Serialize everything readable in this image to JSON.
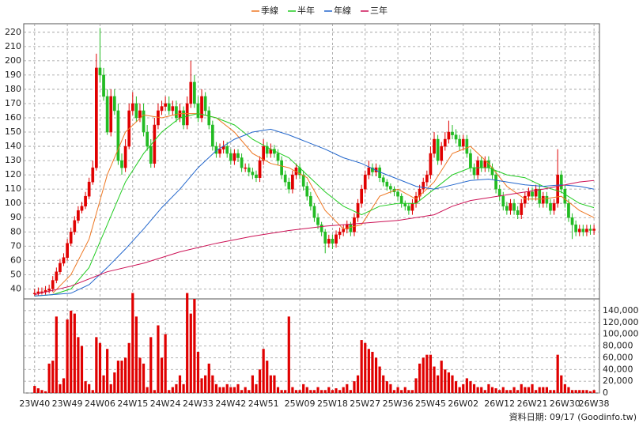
{
  "chart_data": {
    "type": "candlestick",
    "legend": [
      "季線",
      "半年",
      "年線",
      "三年"
    ],
    "source": "資料日期: 09/17 (Goodinfo.tw)",
    "xlim": [
      -3,
      155.5
    ],
    "xticks": [
      {
        "value": 0,
        "label": "23W40"
      },
      {
        "value": 9,
        "label": "23W49"
      },
      {
        "value": 18,
        "label": "24W06"
      },
      {
        "value": 27,
        "label": "24W15"
      },
      {
        "value": 36,
        "label": "24W24"
      },
      {
        "value": 45,
        "label": "24W33"
      },
      {
        "value": 54,
        "label": "24W42"
      },
      {
        "value": 63,
        "label": "24W51"
      },
      {
        "value": 73,
        "label": "25W09"
      },
      {
        "value": 82,
        "label": "25W18"
      },
      {
        "value": 91,
        "label": "25W27"
      },
      {
        "value": 100,
        "label": "25W36"
      },
      {
        "value": 109,
        "label": "25W45"
      },
      {
        "value": 118,
        "label": "26W02"
      },
      {
        "value": 128,
        "label": "26W12"
      },
      {
        "value": 137,
        "label": "26W21"
      },
      {
        "value": 146,
        "label": "26W30"
      },
      {
        "value": 154,
        "label": "26W38"
      }
    ],
    "ylim": [
      33,
      226
    ],
    "yticks": [
      40,
      50,
      60,
      70,
      80,
      90,
      100,
      110,
      120,
      130,
      140,
      150,
      160,
      170,
      180,
      190,
      200,
      210,
      220
    ],
    "volume_ylim": [
      0,
      160000
    ],
    "volume_yticks": [
      {
        "value": 0,
        "label": "0"
      },
      {
        "value": 20000,
        "label": "20,000"
      },
      {
        "value": 40000,
        "label": "40,000"
      },
      {
        "value": 60000,
        "label": "60,000"
      },
      {
        "value": 80000,
        "label": "80,000"
      },
      {
        "value": 100000,
        "label": "100,000"
      },
      {
        "value": 120000,
        "label": "120,000"
      },
      {
        "value": 140000,
        "label": "140,000"
      }
    ],
    "up_color": "#e00000",
    "down_color": "#22bb22",
    "volume_color": "#e00000",
    "grid": true,
    "open": [
      37,
      37,
      38,
      38,
      39,
      40,
      46,
      52,
      58,
      62,
      72,
      80,
      88,
      95,
      98,
      105,
      115,
      125,
      195,
      190,
      175,
      150,
      175,
      165,
      130,
      125,
      140,
      165,
      170,
      160,
      165,
      150,
      140,
      128,
      155,
      165,
      168,
      170,
      165,
      168,
      160,
      165,
      155,
      170,
      185,
      170,
      160,
      175,
      165,
      155,
      140,
      135,
      138,
      140,
      135,
      130,
      135,
      132,
      125,
      125,
      122,
      120,
      118,
      130,
      140,
      135,
      138,
      135,
      130,
      120,
      115,
      110,
      120,
      125,
      120,
      112,
      105,
      98,
      90,
      85,
      80,
      72,
      75,
      72,
      78,
      80,
      82,
      85,
      80,
      90,
      100,
      110,
      120,
      125,
      122,
      125,
      118,
      115,
      112,
      110,
      108,
      105,
      100,
      98,
      95,
      100,
      105,
      110,
      115,
      120,
      135,
      145,
      130,
      140,
      145,
      150,
      148,
      145,
      140,
      145,
      135,
      125,
      120,
      130,
      125,
      130,
      125,
      120,
      110,
      105,
      98,
      95,
      100,
      95,
      92,
      100,
      105,
      108,
      105,
      110,
      100,
      105,
      100,
      95,
      100,
      120,
      110,
      100,
      90,
      85,
      80,
      82,
      80,
      82,
      81
    ],
    "high": [
      40,
      41,
      41,
      42,
      43,
      49,
      55,
      61,
      65,
      75,
      83,
      91,
      98,
      101,
      108,
      118,
      130,
      205,
      223,
      195,
      180,
      180,
      180,
      170,
      135,
      145,
      170,
      178,
      175,
      170,
      170,
      155,
      145,
      160,
      170,
      172,
      175,
      175,
      172,
      172,
      170,
      168,
      175,
      200,
      190,
      175,
      180,
      178,
      168,
      158,
      143,
      142,
      144,
      143,
      138,
      138,
      138,
      135,
      128,
      128,
      125,
      123,
      133,
      145,
      143,
      142,
      141,
      138,
      133,
      123,
      118,
      123,
      128,
      128,
      123,
      115,
      108,
      100,
      93,
      87,
      82,
      78,
      78,
      81,
      83,
      85,
      88,
      87,
      93,
      103,
      113,
      123,
      130,
      128,
      128,
      127,
      120,
      117,
      114,
      112,
      110,
      107,
      102,
      100,
      103,
      108,
      113,
      118,
      123,
      140,
      150,
      148,
      143,
      150,
      158,
      155,
      152,
      148,
      148,
      148,
      138,
      128,
      133,
      133,
      133,
      133,
      128,
      123,
      113,
      108,
      101,
      103,
      103,
      98,
      103,
      108,
      111,
      111,
      113,
      113,
      108,
      108,
      103,
      103,
      138,
      123,
      113,
      103,
      93,
      88,
      85,
      85,
      85,
      85,
      85
    ],
    "low": [
      35,
      35,
      36,
      36,
      37,
      38,
      44,
      50,
      56,
      60,
      70,
      78,
      86,
      93,
      96,
      103,
      113,
      123,
      185,
      172,
      148,
      147,
      162,
      127,
      120,
      122,
      138,
      162,
      157,
      157,
      147,
      137,
      125,
      125,
      152,
      162,
      165,
      162,
      162,
      157,
      157,
      152,
      152,
      167,
      167,
      157,
      157,
      162,
      152,
      137,
      132,
      132,
      135,
      132,
      127,
      127,
      129,
      122,
      122,
      119,
      117,
      115,
      115,
      127,
      132,
      132,
      132,
      127,
      117,
      112,
      107,
      107,
      117,
      117,
      109,
      102,
      95,
      87,
      82,
      77,
      65,
      69,
      68,
      69,
      75,
      77,
      79,
      77,
      77,
      87,
      97,
      107,
      117,
      119,
      119,
      115,
      112,
      109,
      107,
      105,
      102,
      97,
      95,
      92,
      92,
      97,
      102,
      107,
      112,
      117,
      132,
      127,
      127,
      137,
      142,
      145,
      142,
      137,
      137,
      132,
      122,
      117,
      117,
      122,
      122,
      122,
      117,
      107,
      102,
      95,
      92,
      92,
      92,
      89,
      89,
      97,
      102,
      102,
      102,
      97,
      97,
      97,
      92,
      92,
      97,
      107,
      97,
      87,
      75,
      77,
      77,
      77,
      77,
      78,
      78
    ],
    "close": [
      37,
      38,
      38,
      39,
      40,
      46,
      52,
      58,
      62,
      72,
      80,
      88,
      95,
      98,
      105,
      115,
      125,
      195,
      190,
      175,
      150,
      175,
      165,
      130,
      125,
      140,
      165,
      170,
      160,
      165,
      150,
      140,
      128,
      155,
      165,
      168,
      170,
      165,
      168,
      160,
      165,
      155,
      170,
      185,
      170,
      160,
      175,
      165,
      155,
      140,
      135,
      138,
      140,
      135,
      130,
      135,
      132,
      125,
      125,
      122,
      120,
      118,
      130,
      140,
      135,
      138,
      135,
      130,
      120,
      115,
      110,
      120,
      125,
      120,
      112,
      105,
      98,
      90,
      85,
      80,
      72,
      75,
      72,
      78,
      80,
      82,
      85,
      80,
      90,
      100,
      110,
      120,
      125,
      122,
      125,
      118,
      115,
      112,
      110,
      108,
      105,
      100,
      98,
      95,
      100,
      105,
      110,
      115,
      120,
      135,
      145,
      130,
      140,
      145,
      150,
      148,
      145,
      140,
      145,
      135,
      125,
      120,
      130,
      125,
      130,
      125,
      120,
      110,
      105,
      98,
      95,
      100,
      95,
      92,
      100,
      105,
      108,
      105,
      110,
      100,
      105,
      100,
      95,
      100,
      120,
      110,
      100,
      90,
      85,
      80,
      82,
      80,
      82,
      81,
      82
    ],
    "volume": [
      12000,
      8000,
      5000,
      3000,
      50000,
      55000,
      130000,
      15000,
      25000,
      125000,
      140000,
      135000,
      95000,
      80000,
      20000,
      15000,
      5000,
      95000,
      85000,
      30000,
      75000,
      15000,
      35000,
      55000,
      55000,
      60000,
      85000,
      170000,
      130000,
      60000,
      50000,
      10000,
      95000,
      5000,
      115000,
      60000,
      100000,
      5000,
      10000,
      15000,
      30000,
      15000,
      170000,
      135000,
      160000,
      70000,
      25000,
      30000,
      50000,
      30000,
      15000,
      10000,
      10000,
      15000,
      10000,
      10000,
      15000,
      5000,
      10000,
      5000,
      30000,
      15000,
      40000,
      75000,
      55000,
      30000,
      30000,
      10000,
      5000,
      5000,
      130000,
      10000,
      5000,
      5000,
      15000,
      10000,
      5000,
      5000,
      10000,
      5000,
      5000,
      10000,
      5000,
      8000,
      5000,
      10000,
      15000,
      5000,
      20000,
      30000,
      90000,
      85000,
      75000,
      70000,
      60000,
      45000,
      30000,
      20000,
      15000,
      5000,
      10000,
      5000,
      10000,
      5000,
      5000,
      25000,
      50000,
      60000,
      65000,
      65000,
      45000,
      30000,
      55000,
      40000,
      35000,
      30000,
      20000,
      10000,
      15000,
      25000,
      20000,
      15000,
      10000,
      10000,
      5000,
      15000,
      10000,
      8000,
      5000,
      10000,
      5000,
      5000,
      10000,
      5000,
      15000,
      10000,
      10000,
      15000,
      5000,
      10000,
      10000,
      10000,
      5000,
      5000,
      65000,
      30000,
      15000,
      10000,
      5000,
      5000,
      5000,
      5000,
      5000,
      3000,
      5000
    ],
    "series": [
      {
        "name": "季線",
        "color": "#ee7722",
        "x": [
          5,
          10,
          15,
          20,
          25,
          30,
          35,
          40,
          45,
          50,
          55,
          60,
          65,
          70,
          75,
          80,
          85,
          90,
          95,
          100,
          105,
          110,
          115,
          120,
          125,
          130,
          135,
          140,
          145,
          150,
          154
        ],
        "values": [
          37,
          50,
          75,
          120,
          150,
          162,
          160,
          163,
          163,
          160,
          150,
          135,
          128,
          125,
          118,
          95,
          82,
          85,
          105,
          110,
          103,
          115,
          135,
          140,
          128,
          112,
          103,
          103,
          105,
          95,
          90
        ]
      },
      {
        "name": "半年",
        "color": "#22cc22",
        "x": [
          0,
          5,
          10,
          15,
          20,
          25,
          30,
          35,
          40,
          45,
          50,
          55,
          60,
          65,
          70,
          75,
          80,
          85,
          90,
          95,
          100,
          105,
          110,
          115,
          120,
          125,
          130,
          135,
          140,
          145,
          150,
          154
        ],
        "values": [
          35,
          36,
          40,
          55,
          85,
          115,
          135,
          150,
          160,
          163,
          160,
          155,
          145,
          138,
          132,
          120,
          108,
          98,
          92,
          98,
          100,
          100,
          110,
          120,
          125,
          125,
          120,
          118,
          112,
          108,
          100,
          97
        ]
      },
      {
        "name": "年線",
        "color": "#2266cc",
        "x": [
          0,
          10,
          15,
          20,
          25,
          30,
          35,
          40,
          45,
          50,
          55,
          60,
          65,
          70,
          75,
          80,
          85,
          90,
          95,
          100,
          105,
          110,
          115,
          120,
          125,
          130,
          135,
          140,
          145,
          150,
          154
        ],
        "values": [
          35,
          37,
          43,
          55,
          68,
          82,
          97,
          110,
          125,
          137,
          145,
          150,
          152,
          148,
          143,
          138,
          132,
          128,
          122,
          117,
          112,
          110,
          113,
          116,
          117,
          115,
          113,
          112,
          113,
          112,
          110
        ]
      },
      {
        "name": "三年",
        "color": "#cc1155",
        "x": [
          0,
          10,
          20,
          30,
          40,
          50,
          60,
          70,
          80,
          90,
          100,
          110,
          115,
          120,
          130,
          140,
          150,
          154
        ],
        "values": [
          36,
          42,
          52,
          58,
          66,
          72,
          77,
          81,
          84,
          86,
          88,
          92,
          98,
          102,
          106,
          110,
          115,
          116
        ]
      }
    ]
  }
}
